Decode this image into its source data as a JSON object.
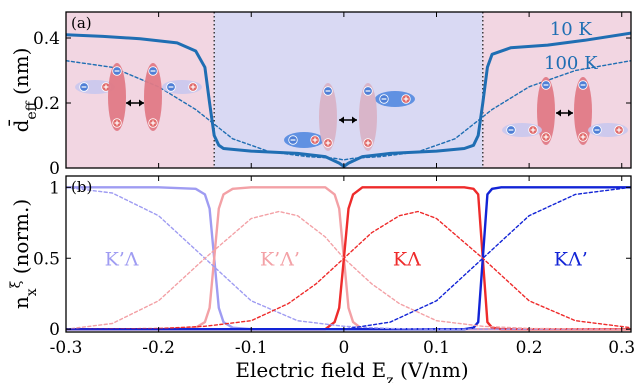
{
  "figure": {
    "xlabel": "Electric field E_z (V/nm)"
  },
  "colors": {
    "left_region": "#f2d6e2",
    "center_region": "#d9d9f3",
    "right_region": "#f2d6e2",
    "deff": "#1f6eb3",
    "K_prime_Lambda": "#9f9cf2",
    "K_prime_Lambda_prime": "#f3a1a6",
    "K_Lambda": "#ee2b2b",
    "K_Lambda_prime": "#1224d6",
    "dotted_guides": "#222222",
    "hole": "#e06a6a",
    "electron": "#4f7fd6"
  },
  "chart_data": [
    {
      "id": "a",
      "panel_label": "(a)",
      "type": "line",
      "ylabel": "d̄_eff (nm)",
      "xlim": [
        -0.3,
        0.31
      ],
      "ylim": [
        0,
        0.48
      ],
      "xticks": [
        -0.3,
        -0.2,
        -0.1,
        0,
        0.1,
        0.2,
        0.3
      ],
      "yticks": [
        0,
        0.2,
        0.4
      ],
      "ytick_labels": [
        "0",
        "0.2",
        "0.4"
      ],
      "grid": false,
      "shaded_regions": [
        {
          "x": [
            -0.3,
            -0.14
          ],
          "color_key": "left_region"
        },
        {
          "x": [
            -0.14,
            0.15
          ],
          "color_key": "center_region"
        },
        {
          "x": [
            0.15,
            0.31
          ],
          "color_key": "right_region"
        }
      ],
      "vertical_guides": [
        -0.14,
        0.15
      ],
      "series": [
        {
          "name": "10 K",
          "style": "solid",
          "x": [
            -0.3,
            -0.26,
            -0.22,
            -0.18,
            -0.16,
            -0.15,
            -0.145,
            -0.14,
            -0.135,
            -0.13,
            -0.1,
            -0.05,
            -0.02,
            -0.005,
            0,
            0.005,
            0.02,
            0.05,
            0.1,
            0.13,
            0.14,
            0.145,
            0.15,
            0.155,
            0.16,
            0.18,
            0.22,
            0.26,
            0.31
          ],
          "values": [
            0.41,
            0.405,
            0.398,
            0.385,
            0.36,
            0.31,
            0.2,
            0.1,
            0.07,
            0.06,
            0.052,
            0.045,
            0.035,
            0.015,
            0.005,
            0.015,
            0.035,
            0.045,
            0.052,
            0.06,
            0.07,
            0.1,
            0.2,
            0.31,
            0.35,
            0.37,
            0.378,
            0.393,
            0.415
          ]
        },
        {
          "name": "100 K",
          "style": "dashed",
          "x": [
            -0.3,
            -0.25,
            -0.2,
            -0.16,
            -0.12,
            -0.08,
            -0.04,
            -0.01,
            0,
            0.01,
            0.04,
            0.08,
            0.12,
            0.16,
            0.2,
            0.25,
            0.31
          ],
          "values": [
            0.33,
            0.31,
            0.25,
            0.18,
            0.09,
            0.05,
            0.035,
            0.03,
            0.025,
            0.03,
            0.035,
            0.05,
            0.09,
            0.18,
            0.25,
            0.3,
            0.33
          ]
        }
      ]
    },
    {
      "id": "b",
      "panel_label": "(b)",
      "type": "line",
      "ylabel": "n_x^ξ (norm.)",
      "xlim": [
        -0.3,
        0.31
      ],
      "ylim": [
        -0.02,
        1.08
      ],
      "xticks": [
        -0.3,
        -0.2,
        -0.1,
        0,
        0.1,
        0.2,
        0.3
      ],
      "xtick_labels": [
        "-0.3",
        "-0.2",
        "-0.1",
        "0",
        "0.1",
        "0.2",
        "0.3"
      ],
      "yticks": [
        0,
        0.5,
        1
      ],
      "ytick_labels": [
        "0",
        "0.5",
        "1"
      ],
      "grid": false,
      "series": [
        {
          "name": "K’Λ",
          "color_key": "K_prime_Lambda",
          "style": "solid",
          "x": [
            -0.3,
            -0.2,
            -0.16,
            -0.15,
            -0.145,
            -0.14,
            -0.135,
            -0.13,
            -0.12,
            -0.1,
            0,
            0.1,
            0.31
          ],
          "values": [
            1,
            1,
            0.99,
            0.95,
            0.85,
            0.5,
            0.15,
            0.05,
            0.01,
            0,
            0,
            0,
            0
          ]
        },
        {
          "name": "K’Λ’",
          "color_key": "K_prime_Lambda_prime",
          "style": "solid",
          "x": [
            -0.3,
            -0.2,
            -0.16,
            -0.15,
            -0.145,
            -0.14,
            -0.135,
            -0.13,
            -0.12,
            -0.1,
            -0.02,
            -0.01,
            -0.005,
            0,
            0.005,
            0.01,
            0.02,
            0.1,
            0.31
          ],
          "values": [
            0,
            0,
            0.01,
            0.05,
            0.15,
            0.5,
            0.85,
            0.95,
            0.99,
            1,
            1,
            0.95,
            0.85,
            0.5,
            0.15,
            0.05,
            0,
            0,
            0
          ]
        },
        {
          "name": "KΛ",
          "color_key": "K_Lambda",
          "style": "solid",
          "x": [
            -0.3,
            -0.1,
            -0.02,
            -0.01,
            -0.005,
            0,
            0.005,
            0.01,
            0.02,
            0.13,
            0.14,
            0.145,
            0.15,
            0.155,
            0.16,
            0.17,
            0.31
          ],
          "values": [
            0,
            0,
            0,
            0.05,
            0.15,
            0.5,
            0.85,
            0.95,
            1,
            1,
            0.99,
            0.95,
            0.5,
            0.05,
            0.01,
            0,
            0
          ]
        },
        {
          "name": "KΛ’",
          "color_key": "K_Lambda_prime",
          "style": "solid",
          "x": [
            -0.3,
            0.1,
            0.13,
            0.14,
            0.145,
            0.15,
            0.155,
            0.16,
            0.17,
            0.2,
            0.31
          ],
          "values": [
            0,
            0,
            0,
            0.01,
            0.05,
            0.5,
            0.95,
            0.99,
            1,
            1,
            1
          ]
        },
        {
          "name": "K’Λ",
          "color_key": "K_prime_Lambda",
          "style": "dashed",
          "x": [
            -0.3,
            -0.25,
            -0.2,
            -0.15,
            -0.1,
            -0.05,
            0,
            0.05,
            0.1,
            0.31
          ],
          "values": [
            1,
            0.96,
            0.8,
            0.5,
            0.2,
            0.06,
            0.02,
            0.005,
            0,
            0
          ]
        },
        {
          "name": "K’Λ’",
          "color_key": "K_prime_Lambda_prime",
          "style": "dashed",
          "x": [
            -0.3,
            -0.25,
            -0.2,
            -0.15,
            -0.1,
            -0.07,
            -0.05,
            -0.02,
            0,
            0.03,
            0.06,
            0.1,
            0.15,
            0.2,
            0.31
          ],
          "values": [
            0,
            0.04,
            0.2,
            0.5,
            0.78,
            0.83,
            0.8,
            0.65,
            0.5,
            0.32,
            0.18,
            0.06,
            0.02,
            0.005,
            0
          ]
        },
        {
          "name": "KΛ",
          "color_key": "K_Lambda",
          "style": "dashed",
          "x": [
            -0.3,
            -0.2,
            -0.15,
            -0.1,
            -0.06,
            -0.03,
            0,
            0.03,
            0.06,
            0.08,
            0.1,
            0.15,
            0.2,
            0.25,
            0.31
          ],
          "values": [
            0,
            0.005,
            0.02,
            0.06,
            0.18,
            0.32,
            0.5,
            0.68,
            0.8,
            0.83,
            0.78,
            0.5,
            0.2,
            0.06,
            0.01
          ]
        },
        {
          "name": "KΛ’",
          "color_key": "K_Lambda_prime",
          "style": "dashed",
          "x": [
            -0.3,
            0,
            0.05,
            0.1,
            0.15,
            0.2,
            0.25,
            0.31
          ],
          "values": [
            0,
            0,
            0.05,
            0.2,
            0.5,
            0.8,
            0.95,
            1
          ]
        }
      ],
      "annotations": [
        {
          "text": "K’Λ",
          "x": -0.24,
          "y": 0.5,
          "color_key": "K_prime_Lambda"
        },
        {
          "text": "K’Λ’",
          "x": -0.069,
          "y": 0.5,
          "color_key": "K_prime_Lambda_prime"
        },
        {
          "text": "KΛ",
          "x": 0.068,
          "y": 0.5,
          "color_key": "K_Lambda"
        },
        {
          "text": "KΛ’",
          "x": 0.245,
          "y": 0.5,
          "color_key": "K_Lambda_prime"
        }
      ]
    }
  ],
  "labels_a": {
    "series_10K": "10 K",
    "series_100K": "100 K"
  }
}
